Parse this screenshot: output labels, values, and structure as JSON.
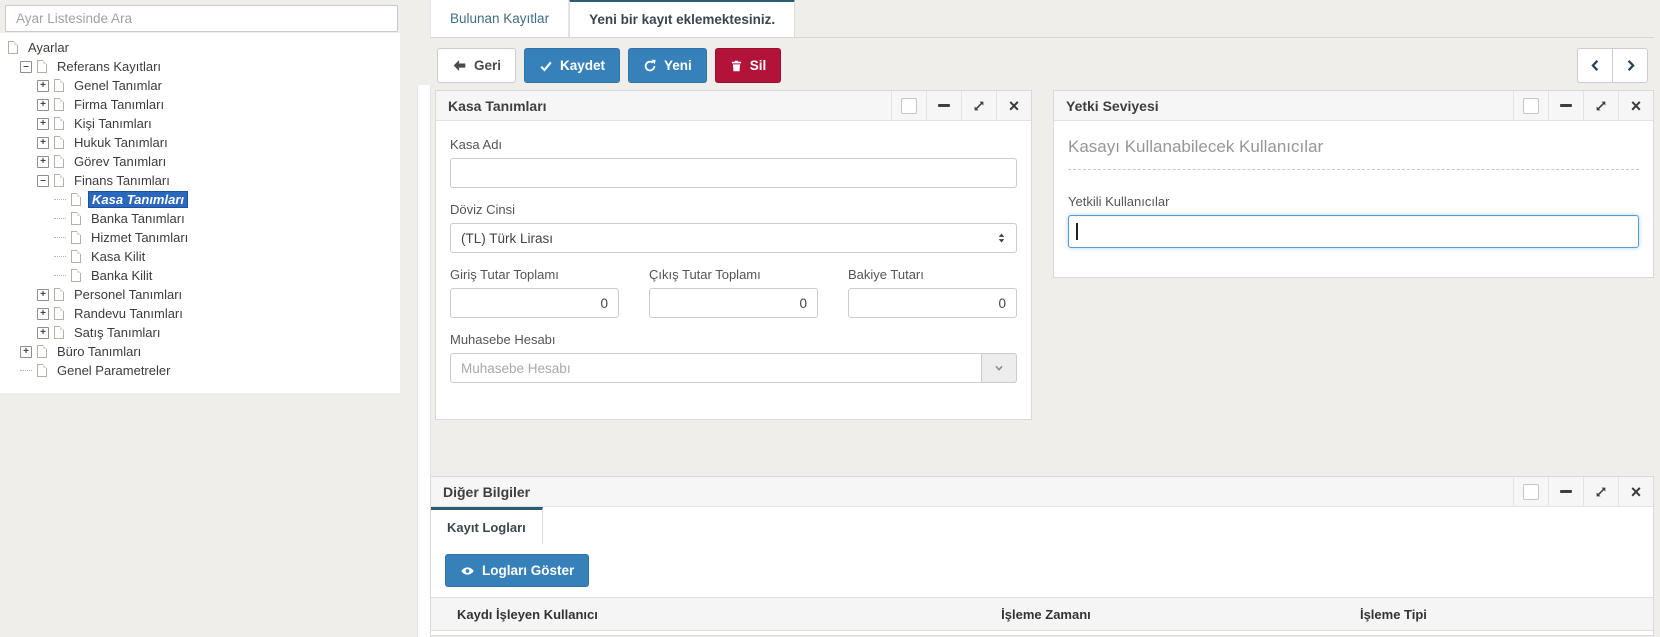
{
  "sidebar": {
    "search_placeholder": "Ayar Listesinde Ara",
    "tree": [
      {
        "label": "Ayarlar",
        "level": 0,
        "toggle": "none",
        "selected": false
      },
      {
        "label": "Referans Kayıtları",
        "level": 1,
        "toggle": "minus",
        "selected": false
      },
      {
        "label": "Genel Tanımlar",
        "level": 2,
        "toggle": "plus",
        "selected": false
      },
      {
        "label": "Firma Tanımları",
        "level": 2,
        "toggle": "plus",
        "selected": false
      },
      {
        "label": "Kişi Tanımları",
        "level": 2,
        "toggle": "plus",
        "selected": false
      },
      {
        "label": "Hukuk Tanımları",
        "level": 2,
        "toggle": "plus",
        "selected": false
      },
      {
        "label": "Görev Tanımları",
        "level": 2,
        "toggle": "plus",
        "selected": false
      },
      {
        "label": "Finans Tanımları",
        "level": 2,
        "toggle": "minus",
        "selected": false
      },
      {
        "label": "Kasa Tanımları",
        "level": 3,
        "toggle": "none",
        "selected": true
      },
      {
        "label": "Banka Tanımları",
        "level": 3,
        "toggle": "none",
        "selected": false
      },
      {
        "label": "Hizmet Tanımları",
        "level": 3,
        "toggle": "none",
        "selected": false
      },
      {
        "label": "Kasa Kilit",
        "level": 3,
        "toggle": "none",
        "selected": false
      },
      {
        "label": "Banka Kilit",
        "level": 3,
        "toggle": "none",
        "selected": false
      },
      {
        "label": "Personel Tanımları",
        "level": 2,
        "toggle": "plus",
        "selected": false
      },
      {
        "label": "Randevu Tanımları",
        "level": 2,
        "toggle": "plus",
        "selected": false
      },
      {
        "label": "Satış Tanımları",
        "level": 2,
        "toggle": "plus",
        "selected": false
      },
      {
        "label": "Büro Tanımları",
        "level": 1,
        "toggle": "plus",
        "selected": false
      },
      {
        "label": "Genel Parametreler",
        "level": 1,
        "toggle": "none",
        "selected": false
      }
    ]
  },
  "tabs": {
    "found_records": "Bulunan Kayıtlar",
    "new_record": "Yeni bir kayıt eklemektesiniz."
  },
  "toolbar": {
    "back": "Geri",
    "save": "Kaydet",
    "new": "Yeni",
    "delete": "Sil"
  },
  "kasa_panel": {
    "title": "Kasa Tanımları",
    "fields": {
      "kasa_adi_label": "Kasa Adı",
      "kasa_adi_value": "",
      "doviz_cinsi_label": "Döviz Cinsi",
      "doviz_cinsi_value": "(TL) Türk Lirası",
      "giris_label": "Giriş Tutar Toplamı",
      "giris_value": "0",
      "cikis_label": "Çıkış Tutar Toplamı",
      "cikis_value": "0",
      "bakiye_label": "Bakiye Tutarı",
      "bakiye_value": "0",
      "muhasebe_label": "Muhasebe Hesabı",
      "muhasebe_placeholder": "Muhasebe Hesabı"
    }
  },
  "yetki_panel": {
    "title": "Yetki Seviyesi",
    "heading": "Kasayı Kullanabilecek Kullanıcılar",
    "yetkili_label": "Yetkili Kullanıcılar",
    "yetkili_value": ""
  },
  "diger_panel": {
    "title": "Diğer Bilgiler",
    "tab": "Kayıt Logları",
    "show_logs_button": "Logları Göster",
    "table_headers": [
      "Kaydı İşleyen Kullanıcı",
      "İşleme Zamanı",
      "İşleme Tipi"
    ]
  },
  "icons": {
    "back": "arrow-left-icon",
    "save": "check-icon",
    "new": "refresh-icon",
    "delete": "trash-icon",
    "show_logs": "eye-icon",
    "panel_controls": [
      "select-checkbox",
      "collapse-minus-icon",
      "expand-icon",
      "close-icon"
    ],
    "pager": [
      "chevron-left-icon",
      "chevron-right-icon"
    ],
    "select": "up-down-spinner-icon",
    "dropdown": "caret-down-icon"
  },
  "colors": {
    "primary_blue": "#3781bb",
    "danger_red": "#b11339",
    "tab_accent_teal": "#2a5f73",
    "tree_selected_blue": "#2a68be",
    "page_background": "#efeeeb"
  }
}
